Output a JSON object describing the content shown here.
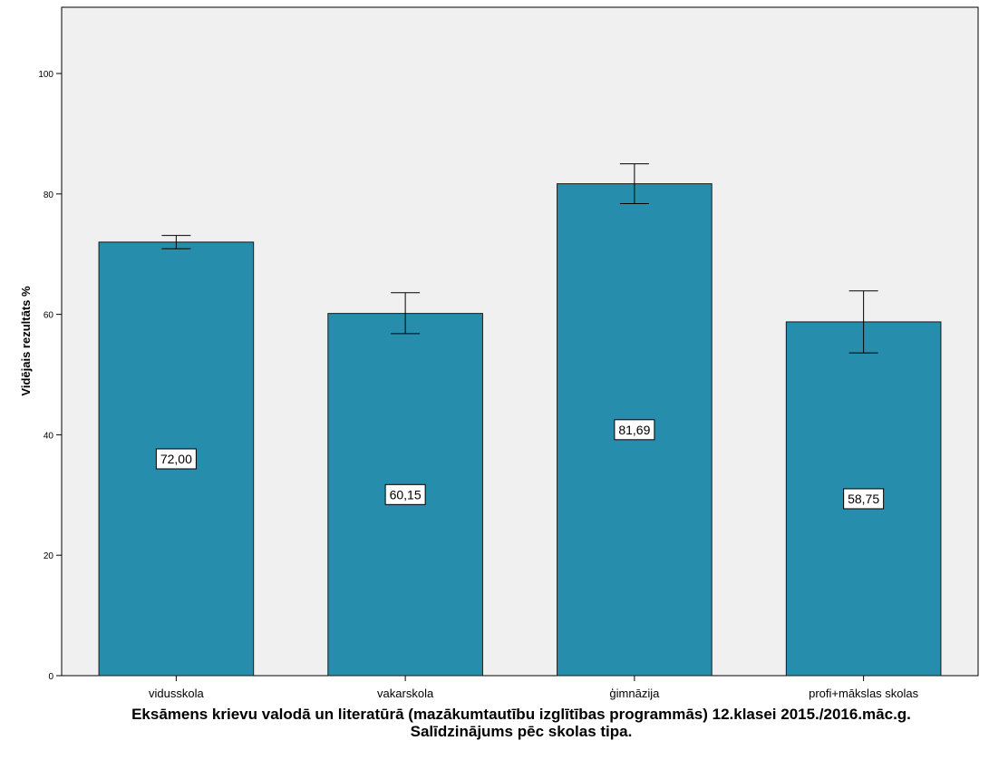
{
  "chart_data": {
    "type": "bar",
    "categories": [
      "vidusskola",
      "vakarskola",
      "ģimnāzija",
      "profi+mākslas skolas"
    ],
    "values": [
      72.0,
      60.15,
      81.69,
      58.75
    ],
    "value_labels": [
      "72,00",
      "60,15",
      "81,69",
      "58,75"
    ],
    "error_bars": [
      {
        "low": 70.9,
        "high": 73.1
      },
      {
        "low": 56.8,
        "high": 63.6
      },
      {
        "low": 78.4,
        "high": 85.0
      },
      {
        "low": 53.6,
        "high": 63.9
      }
    ],
    "ylabel": "Vidējais rezultāts %",
    "xlabel": "",
    "ylim": [
      0,
      111
    ],
    "yticks": [
      0,
      20,
      40,
      60,
      80,
      100
    ],
    "title_line1": "Eksāmens krievu valodā un literatūrā (mazākumtautību izglītības programmās) 12.klasei 2015./2016.māc.g.",
    "title_line2": "Salīdzinājums pēc skolas tipa.",
    "colors": {
      "bar": "#268dad",
      "bar_stroke": "#1a1a1a",
      "plot_background": "#f0f0f0",
      "axis": "#000000"
    },
    "grid": false
  }
}
